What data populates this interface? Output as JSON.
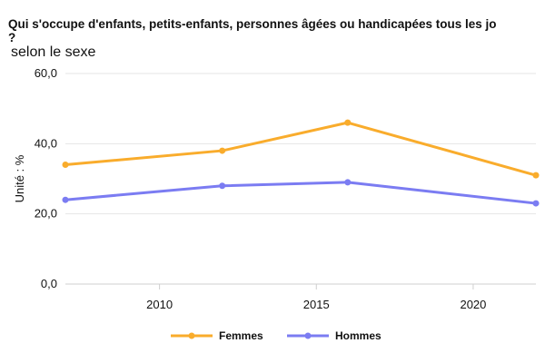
{
  "chart_data": {
    "type": "line",
    "title_line1": "Qui s'occupe d'enfants, petits-enfants, personnes âgées ou handicapées tous les jo",
    "title_line2": "?",
    "subtitle": "selon le sexe",
    "ylabel": "Unité : %",
    "xlabel": "",
    "xlim": [
      2007,
      2022
    ],
    "ylim": [
      0,
      60
    ],
    "x_ticks": [
      2010,
      2015,
      2020
    ],
    "y_ticks": [
      0,
      20,
      40,
      60
    ],
    "y_tick_labels": [
      "0,0",
      "20,0",
      "40,0",
      "60,0"
    ],
    "grid": true,
    "legend_position": "bottom",
    "series": [
      {
        "name": "Femmes",
        "color": "#f9ac2c",
        "x": [
          2007,
          2012,
          2016,
          2022
        ],
        "y": [
          34,
          38,
          46,
          31
        ]
      },
      {
        "name": "Hommes",
        "color": "#7b7cf2",
        "x": [
          2007,
          2012,
          2016,
          2022
        ],
        "y": [
          24,
          28,
          29,
          23
        ]
      }
    ]
  }
}
